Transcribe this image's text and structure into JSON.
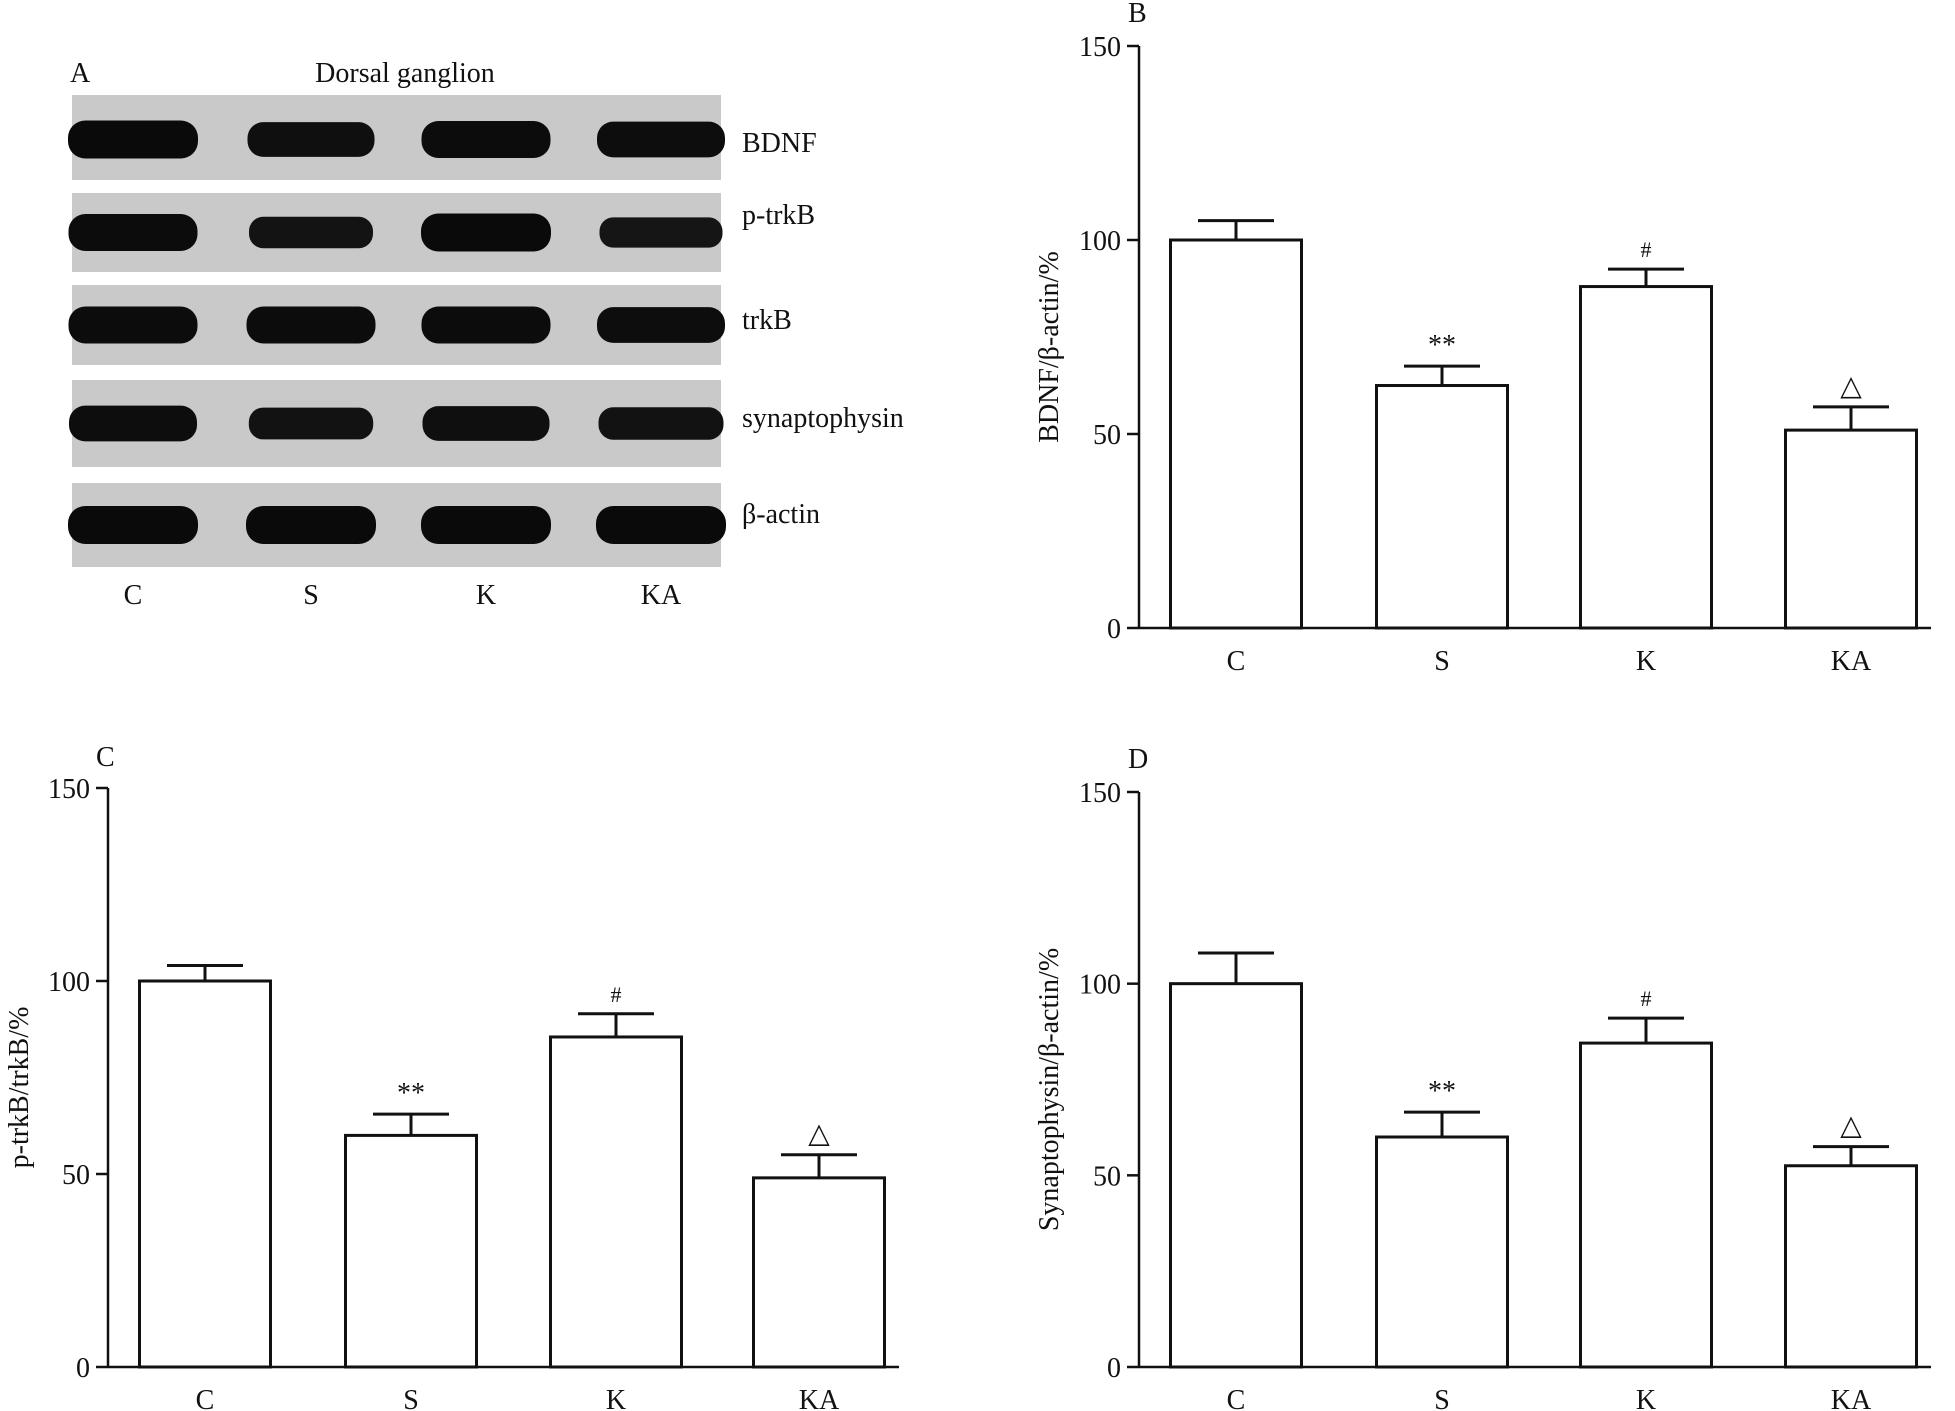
{
  "panel_a": {
    "letter": "A",
    "title": "Dorsal ganglion",
    "lanes": [
      "C",
      "S",
      "K",
      "KA"
    ],
    "rows": [
      {
        "label": "BDNF",
        "intensity": [
          1.0,
          0.85,
          0.95,
          0.9
        ]
      },
      {
        "label": "p-trkB",
        "intensity": [
          0.95,
          0.7,
          1.0,
          0.65
        ]
      },
      {
        "label": "trkB",
        "intensity": [
          0.95,
          0.95,
          0.95,
          0.9
        ]
      },
      {
        "label": "synaptophysin",
        "intensity": [
          0.9,
          0.72,
          0.85,
          0.75
        ]
      },
      {
        "label": "β-actin",
        "intensity": [
          1.0,
          1.0,
          1.0,
          1.0
        ]
      }
    ]
  },
  "chart_data": [
    {
      "type": "bar",
      "letter": "B",
      "categories": [
        "C",
        "S",
        "K",
        "KA"
      ],
      "values": [
        100,
        62.5,
        88,
        51
      ],
      "errors": [
        5,
        5,
        4.5,
        6
      ],
      "annotations": [
        "",
        "**",
        "#",
        "△"
      ],
      "ylabel": "BDNF/β-actin/%",
      "xlabel": "",
      "ylim": [
        0,
        150
      ],
      "yticks": [
        0,
        50,
        100,
        150
      ]
    },
    {
      "type": "bar",
      "letter": "C",
      "categories": [
        "C",
        "S",
        "K",
        "KA"
      ],
      "values": [
        100,
        60,
        85.5,
        49
      ],
      "errors": [
        4,
        5.5,
        6,
        6
      ],
      "annotations": [
        "",
        "**",
        "#",
        "△"
      ],
      "ylabel": "p-trkB/trkB/%",
      "xlabel": "",
      "ylim": [
        0,
        150
      ],
      "yticks": [
        0,
        50,
        100,
        150
      ]
    },
    {
      "type": "bar",
      "letter": "D",
      "categories": [
        "C",
        "S",
        "K",
        "KA"
      ],
      "values": [
        100,
        60,
        84.5,
        52.5
      ],
      "errors": [
        8,
        6.5,
        6.5,
        5
      ],
      "annotations": [
        "",
        "**",
        "#",
        "△"
      ],
      "ylabel": "Synaptophysin/β-actin/%",
      "xlabel": "",
      "ylim": [
        0,
        150
      ],
      "yticks": [
        0,
        50,
        100,
        150
      ]
    }
  ]
}
